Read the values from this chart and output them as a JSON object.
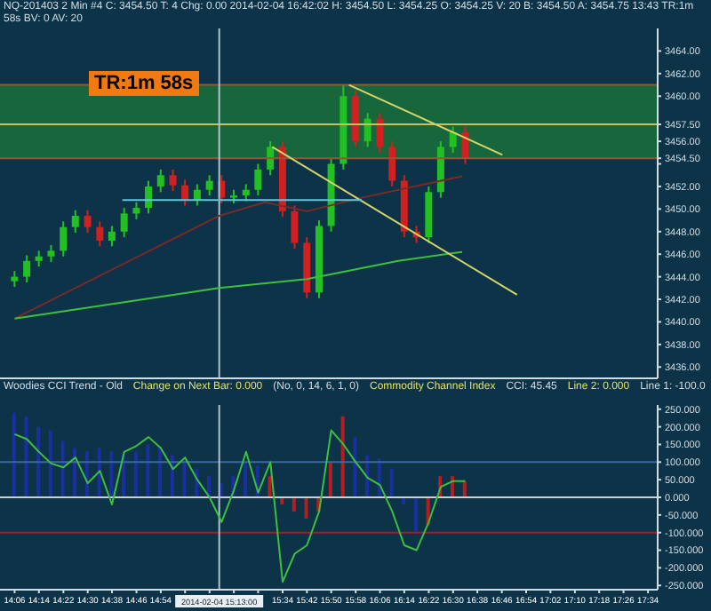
{
  "chart_data": [
    {
      "type": "candlestick",
      "title": "NQ-201403  2 Min  #4  C: 3454.50  T: 4  Chg: 0.00  2014-02-04 16:42:02  H: 3454.50  L: 3454.25  O: 3454.25  V: 20  B: 3454.50  A: 3454.75  13:43  TR:1m 58s  BV: 0  AV: 20",
      "annotations": [
        "TR:1m 58s"
      ],
      "x": [
        14.1,
        14.167,
        14.233,
        14.3,
        14.367,
        14.433,
        14.5,
        14.567,
        14.633,
        14.7,
        14.767,
        14.833,
        14.9,
        14.967,
        15.033,
        15.1,
        15.167,
        15.233,
        15.3,
        15.367,
        15.433,
        15.5,
        15.567,
        15.633,
        15.7,
        15.767,
        15.833,
        15.9,
        15.967,
        16.033,
        16.1,
        16.167,
        16.233,
        16.3,
        16.367,
        16.433,
        16.5,
        16.567
      ],
      "ohlc": [
        [
          3443.6,
          3444.5,
          3443.1,
          3444.0
        ],
        [
          3444.0,
          3445.9,
          3443.5,
          3445.4
        ],
        [
          3445.4,
          3446.3,
          3444.9,
          3445.8
        ],
        [
          3445.8,
          3446.8,
          3445.3,
          3446.3
        ],
        [
          3446.3,
          3448.9,
          3445.8,
          3448.4
        ],
        [
          3448.4,
          3449.9,
          3447.9,
          3449.4
        ],
        [
          3449.4,
          3449.9,
          3447.9,
          3448.4
        ],
        [
          3448.4,
          3448.9,
          3446.7,
          3447.2
        ],
        [
          3447.2,
          3448.5,
          3446.7,
          3448.0
        ],
        [
          3448.0,
          3450.1,
          3447.5,
          3449.6
        ],
        [
          3449.6,
          3450.6,
          3449.1,
          3450.1
        ],
        [
          3450.1,
          3452.5,
          3449.6,
          3452.0
        ],
        [
          3452.0,
          3453.5,
          3451.5,
          3453.0
        ],
        [
          3453.0,
          3453.5,
          3451.6,
          3452.1
        ],
        [
          3452.1,
          3452.6,
          3450.3,
          3450.8
        ],
        [
          3450.8,
          3452.2,
          3450.3,
          3451.7
        ],
        [
          3451.7,
          3453.0,
          3451.2,
          3452.5
        ],
        [
          3452.5,
          3453.0,
          3450.5,
          3451.0
        ],
        [
          3451.0,
          3451.7,
          3450.5,
          3451.2
        ],
        [
          3451.2,
          3452.2,
          3450.7,
          3451.7
        ],
        [
          3451.7,
          3454.0,
          3451.2,
          3453.5
        ],
        [
          3453.5,
          3456.0,
          3453.0,
          3455.5
        ],
        [
          3455.5,
          3456.0,
          3449.3,
          3449.8
        ],
        [
          3449.8,
          3450.3,
          3446.5,
          3447.0
        ],
        [
          3447.0,
          3447.5,
          3442.1,
          3442.6
        ],
        [
          3442.6,
          3449.0,
          3442.1,
          3448.5
        ],
        [
          3448.5,
          3454.5,
          3448.0,
          3454.0
        ],
        [
          3454.0,
          3461.0,
          3453.5,
          3460.0
        ],
        [
          3460.0,
          3460.5,
          3455.5,
          3456.0
        ],
        [
          3456.0,
          3458.5,
          3455.5,
          3458.0
        ],
        [
          3458.0,
          3458.5,
          3455.0,
          3455.5
        ],
        [
          3455.5,
          3456.0,
          3452.0,
          3452.5
        ],
        [
          3452.5,
          3453.0,
          3447.5,
          3448.0
        ],
        [
          3448.0,
          3448.5,
          3447.0,
          3447.5
        ],
        [
          3447.5,
          3452.0,
          3447.0,
          3451.5
        ],
        [
          3451.5,
          3456.0,
          3451.0,
          3455.5
        ],
        [
          3455.5,
          3457.3,
          3455.0,
          3456.8
        ],
        [
          3456.8,
          3457.3,
          3454.0,
          3454.5
        ]
      ],
      "colors": [
        "#22c022",
        "#22c022",
        "#22c022",
        "#22c022",
        "#22c022",
        "#22c022",
        "#d02020",
        "#d02020",
        "#22c022",
        "#22c022",
        "#22c022",
        "#22c022",
        "#22c022",
        "#d02020",
        "#d02020",
        "#22c022",
        "#22c022",
        "#d02020",
        "#22c022",
        "#22c022",
        "#22c022",
        "#22c022",
        "#d02020",
        "#d02020",
        "#d02020",
        "#22c022",
        "#22c022",
        "#22c022",
        "#d02020",
        "#22c022",
        "#d02020",
        "#d02020",
        "#d02020",
        "#d02020",
        "#22c022",
        "#22c022",
        "#22c022",
        "#d02020"
      ],
      "series": [
        {
          "type": "line",
          "color": "#7a2a2a",
          "x": [
            14.1,
            15.22,
            15.47,
            15.7,
            16.0,
            16.55
          ],
          "values": [
            3440.3,
            3449.4,
            3450.6,
            3449.8,
            3451.0,
            3452.9
          ]
        },
        {
          "type": "line",
          "color": "#3fbf3f",
          "x": [
            14.1,
            15.22,
            15.7,
            16.2,
            16.55
          ],
          "values": [
            3440.3,
            3443.0,
            3443.8,
            3445.4,
            3446.2
          ]
        },
        {
          "type": "line",
          "color": "#d4d46a",
          "x": [
            15.51,
            16.85
          ],
          "values": [
            3455.5,
            3442.4
          ]
        },
        {
          "type": "line",
          "color": "#d4d46a",
          "x": [
            15.93,
            16.77
          ],
          "values": [
            3461.0,
            3454.8
          ]
        },
        {
          "type": "line",
          "color": "#5fc8d8",
          "x": [
            14.69,
            16.0
          ],
          "values": [
            3450.8,
            3450.8
          ]
        }
      ],
      "bands": [
        {
          "axis": "y",
          "from": 3454.5,
          "to": 3461,
          "color": "#1a6b3a"
        }
      ],
      "ref_lines": [
        {
          "axis": "y",
          "value": 3461,
          "color": "#a0522d"
        },
        {
          "axis": "y",
          "value": 3454.5,
          "color": "#a0522d"
        },
        {
          "axis": "y",
          "value": 3457.5,
          "color": "#c8c060"
        },
        {
          "axis": "x",
          "value": 15.22,
          "color": "#b0c4d0"
        }
      ],
      "xlim": [
        14.02,
        17.62
      ],
      "ylim": [
        3435,
        3466
      ],
      "yticks": [
        {
          "value": 3436,
          "label": "3436.00"
        },
        {
          "value": 3438,
          "label": "3438.00"
        },
        {
          "value": 3440,
          "label": "3440.00"
        },
        {
          "value": 3442,
          "label": "3442.00"
        },
        {
          "value": 3444,
          "label": "3444.00"
        },
        {
          "value": 3446,
          "label": "3446.00"
        },
        {
          "value": 3448,
          "label": "3448.00"
        },
        {
          "value": 3450,
          "label": "3450.00"
        },
        {
          "value": 3452,
          "label": "3452.00"
        },
        {
          "value": 3454,
          "label": null
        },
        {
          "value": 3454.5,
          "label": "3454.50"
        },
        {
          "value": 3456,
          "label": "3456.00"
        },
        {
          "value": 3457.5,
          "label": "3457.50"
        },
        {
          "value": 3460,
          "label": "3460.00"
        },
        {
          "value": 3462,
          "label": "3462.00"
        },
        {
          "value": 3464,
          "label": "3464.00"
        }
      ],
      "tick_labels": "y"
    },
    {
      "type": "bar",
      "title": "Woodies CCI Trend - Old",
      "annotations": [
        "Change on Next Bar: 0.000",
        "(No, 0, 14, 6, 1, 0)",
        "Commodity Channel Index",
        "CCI: 45.45",
        "Line 2: 0.000",
        "Line 1: -100.0"
      ],
      "x": [
        14.1,
        14.167,
        14.233,
        14.3,
        14.367,
        14.433,
        14.5,
        14.567,
        14.633,
        14.7,
        14.767,
        14.833,
        14.9,
        14.967,
        15.033,
        15.1,
        15.167,
        15.233,
        15.3,
        15.367,
        15.433,
        15.5,
        15.567,
        15.633,
        15.7,
        15.767,
        15.833,
        15.9,
        15.967,
        16.033,
        16.1,
        16.167,
        16.233,
        16.3,
        16.367,
        16.433,
        16.5,
        16.567
      ],
      "series": [
        {
          "type": "bar",
          "colors": [
            "#1a2fa0",
            "#1a2fa0",
            "#1a2fa0",
            "#1a2fa0",
            "#1a2fa0",
            "#1a2fa0",
            "#1a2fa0",
            "#1a2fa0",
            "#1a2fa0",
            "#1a2fa0",
            "#1a2fa0",
            "#1a2fa0",
            "#1a2fa0",
            "#1a2fa0",
            "#1a2fa0",
            "#1a2fa0",
            "#1a2fa0",
            "#1a2fa0",
            "#1a2fa0",
            "#1a2fa0",
            "#1a2fa0",
            "#b02020",
            "#b02020",
            "#b02020",
            "#b02020",
            "#b02020",
            "#b02020",
            "#b02020",
            "#1a2fa0",
            "#1a2fa0",
            "#1a2fa0",
            "#1a2fa0",
            "#1a2fa0",
            "#1a2fa0",
            "#b02020",
            "#b02020",
            "#b02020",
            "#b02020"
          ],
          "values": [
            240,
            230,
            200,
            190,
            160,
            140,
            130,
            140,
            130,
            120,
            130,
            150,
            140,
            120,
            110,
            80,
            60,
            40,
            60,
            100,
            90,
            60,
            -20,
            -40,
            -60,
            -40,
            100,
            230,
            170,
            120,
            110,
            80,
            -20,
            -100,
            -80,
            60,
            60,
            45
          ]
        },
        {
          "type": "line",
          "color": "#3fbf3f",
          "values": [
            179,
            165,
            129,
            96,
            85,
            113,
            40,
            75,
            -20,
            129,
            146,
            171,
            140,
            80,
            113,
            50,
            0,
            -70,
            20,
            129,
            13,
            100,
            -240,
            -160,
            -136,
            -40,
            190,
            150,
            100,
            55,
            35,
            -40,
            -136,
            -150,
            -70,
            30,
            46,
            46
          ]
        }
      ],
      "ref_lines": [
        {
          "axis": "y",
          "value": 100,
          "color": "#3a6a9a"
        },
        {
          "axis": "y",
          "value": 0,
          "color": "#c8d0d8"
        },
        {
          "axis": "y",
          "value": -100,
          "color": "#a02020"
        },
        {
          "axis": "x",
          "value": 15.22,
          "color": "#b0c4d0",
          "label": "2014-02-04 15:13:00"
        }
      ],
      "xlim": [
        14.02,
        17.62
      ],
      "ylim": [
        -262,
        262
      ],
      "xticks": [
        {
          "value": 14.1,
          "label": "14:06"
        },
        {
          "value": 14.233,
          "label": "14:14"
        },
        {
          "value": 14.367,
          "label": "14:22"
        },
        {
          "value": 14.5,
          "label": "14:30"
        },
        {
          "value": 14.633,
          "label": "14:38"
        },
        {
          "value": 14.767,
          "label": "14:46"
        },
        {
          "value": 14.9,
          "label": "14:54"
        },
        {
          "value": 15.033,
          "label": null
        },
        {
          "value": 15.167,
          "label": null
        },
        {
          "value": 15.3,
          "label": null
        },
        {
          "value": 15.433,
          "label": null
        },
        {
          "value": 15.567,
          "label": "15:34"
        },
        {
          "value": 15.7,
          "label": "15:42"
        },
        {
          "value": 15.833,
          "label": "15:50"
        },
        {
          "value": 15.967,
          "label": "15:58"
        },
        {
          "value": 16.1,
          "label": "16:06"
        },
        {
          "value": 16.233,
          "label": "16:14"
        },
        {
          "value": 16.367,
          "label": "16:22"
        },
        {
          "value": 16.5,
          "label": "16:30"
        },
        {
          "value": 16.633,
          "label": "16:38"
        },
        {
          "value": 16.767,
          "label": "16:46"
        },
        {
          "value": 16.9,
          "label": "16:54"
        },
        {
          "value": 17.033,
          "label": "17:02"
        },
        {
          "value": 17.167,
          "label": "17:10"
        },
        {
          "value": 17.3,
          "label": "17:18"
        },
        {
          "value": 17.433,
          "label": "17:26"
        },
        {
          "value": 17.567,
          "label": "17:34"
        }
      ],
      "yticks": [
        {
          "value": 250,
          "label": "250.000"
        },
        {
          "value": 200,
          "label": "200.000"
        },
        {
          "value": 150,
          "label": "150.000"
        },
        {
          "value": 100,
          "label": "100.000"
        },
        {
          "value": 50,
          "label": "50.000"
        },
        {
          "value": 0,
          "label": "0.000"
        },
        {
          "value": -50,
          "label": "-50.000"
        },
        {
          "value": -100,
          "label": "-100.000"
        },
        {
          "value": -150,
          "label": "-150.000"
        },
        {
          "value": -200,
          "label": "-200.000"
        },
        {
          "value": -250,
          "label": "-250.000"
        }
      ]
    }
  ]
}
